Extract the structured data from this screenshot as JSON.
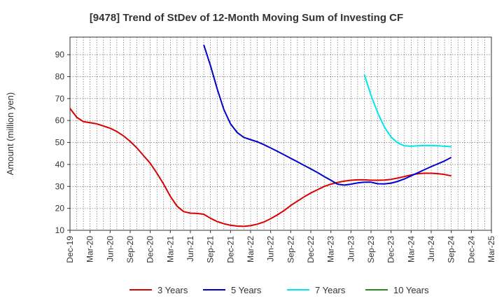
{
  "chart_data": {
    "type": "line",
    "title": "[9478]  Trend of StDev of 12-Month Moving Sum of Investing CF",
    "xlabel": "",
    "ylabel": "Amount (million yen)",
    "ylim": [
      10,
      98
    ],
    "yticks": [
      10,
      20,
      30,
      40,
      50,
      60,
      70,
      80,
      90
    ],
    "xticks": [
      "Dec-19",
      "Mar-20",
      "Jun-20",
      "Sep-20",
      "Dec-20",
      "Mar-21",
      "Jun-21",
      "Sep-21",
      "Dec-21",
      "Mar-22",
      "Jun-22",
      "Sep-22",
      "Dec-22",
      "Mar-23",
      "Jun-23",
      "Sep-23",
      "Dec-23",
      "Mar-24",
      "Jun-24",
      "Sep-24",
      "Dec-24",
      "Mar-25"
    ],
    "x_start": "Dec-19",
    "x_end": "Mar-25",
    "grid": true,
    "legend_position": "bottom",
    "series": [
      {
        "name": "3 Years",
        "color": "#dd0000",
        "points": [
          [
            "Dec-19",
            65.5
          ],
          [
            "Jan-20",
            61.5
          ],
          [
            "Feb-20",
            59.5
          ],
          [
            "Mar-20",
            59
          ],
          [
            "Apr-20",
            58.5
          ],
          [
            "May-20",
            57.5
          ],
          [
            "Jun-20",
            56.5
          ],
          [
            "Jul-20",
            55
          ],
          [
            "Aug-20",
            53
          ],
          [
            "Sep-20",
            50.5
          ],
          [
            "Oct-20",
            47.5
          ],
          [
            "Nov-20",
            44
          ],
          [
            "Dec-20",
            40.5
          ],
          [
            "Jan-21",
            36
          ],
          [
            "Feb-21",
            31
          ],
          [
            "Mar-21",
            25.5
          ],
          [
            "Apr-21",
            21
          ],
          [
            "May-21",
            18.5
          ],
          [
            "Jun-21",
            17.8
          ],
          [
            "Jul-21",
            17.7
          ],
          [
            "Aug-21",
            17.3
          ],
          [
            "Sep-21",
            15.5
          ],
          [
            "Oct-21",
            14
          ],
          [
            "Nov-21",
            13
          ],
          [
            "Dec-21",
            12.3
          ],
          [
            "Jan-22",
            11.9
          ],
          [
            "Feb-22",
            11.8
          ],
          [
            "Mar-22",
            12.1
          ],
          [
            "Apr-22",
            12.8
          ],
          [
            "May-22",
            13.8
          ],
          [
            "Jun-22",
            15.3
          ],
          [
            "Jul-22",
            17
          ],
          [
            "Aug-22",
            19
          ],
          [
            "Sep-22",
            21.3
          ],
          [
            "Oct-22",
            23.3
          ],
          [
            "Nov-22",
            25.2
          ],
          [
            "Dec-22",
            27
          ],
          [
            "Jan-23",
            28.5
          ],
          [
            "Feb-23",
            30
          ],
          [
            "Mar-23",
            31
          ],
          [
            "Apr-23",
            31.8
          ],
          [
            "May-23",
            32.4
          ],
          [
            "Jun-23",
            32.8
          ],
          [
            "Jul-23",
            33
          ],
          [
            "Aug-23",
            33
          ],
          [
            "Sep-23",
            32.8
          ],
          [
            "Oct-23",
            32.8
          ],
          [
            "Nov-23",
            32.9
          ],
          [
            "Dec-23",
            33.2
          ],
          [
            "Jan-24",
            33.8
          ],
          [
            "Feb-24",
            34.5
          ],
          [
            "Mar-24",
            35.2
          ],
          [
            "Apr-24",
            35.8
          ],
          [
            "May-24",
            36
          ],
          [
            "Jun-24",
            36
          ],
          [
            "Jul-24",
            35.8
          ],
          [
            "Aug-24",
            35.4
          ],
          [
            "Sep-24",
            34.8
          ]
        ]
      },
      {
        "name": "5 Years",
        "color": "#0000cc",
        "points": [
          [
            "Aug-21",
            94.5
          ],
          [
            "Sep-21",
            85
          ],
          [
            "Oct-21",
            74.5
          ],
          [
            "Nov-21",
            65
          ],
          [
            "Dec-21",
            58.5
          ],
          [
            "Jan-22",
            54.5
          ],
          [
            "Feb-22",
            52.3
          ],
          [
            "Mar-22",
            51.3
          ],
          [
            "Apr-22",
            50.3
          ],
          [
            "May-22",
            49
          ],
          [
            "Jun-22",
            47.5
          ],
          [
            "Jul-22",
            46
          ],
          [
            "Aug-22",
            44.4
          ],
          [
            "Sep-22",
            42.8
          ],
          [
            "Oct-22",
            41.2
          ],
          [
            "Nov-22",
            39.6
          ],
          [
            "Dec-22",
            38
          ],
          [
            "Jan-23",
            36.3
          ],
          [
            "Feb-23",
            34.5
          ],
          [
            "Mar-23",
            32.8
          ],
          [
            "Apr-23",
            31
          ],
          [
            "May-23",
            30.6
          ],
          [
            "Jun-23",
            31
          ],
          [
            "Jul-23",
            31.6
          ],
          [
            "Aug-23",
            31.9
          ],
          [
            "Sep-23",
            31.9
          ],
          [
            "Oct-23",
            31.2
          ],
          [
            "Nov-23",
            31.1
          ],
          [
            "Dec-23",
            31.5
          ],
          [
            "Jan-24",
            32.3
          ],
          [
            "Feb-24",
            33.4
          ],
          [
            "Mar-24",
            34.8
          ],
          [
            "Apr-24",
            36.2
          ],
          [
            "May-24",
            37.6
          ],
          [
            "Jun-24",
            39
          ],
          [
            "Jul-24",
            40.3
          ],
          [
            "Aug-24",
            41.6
          ],
          [
            "Sep-24",
            43.2
          ]
        ]
      },
      {
        "name": "7 Years",
        "color": "#00e5ee",
        "points": [
          [
            "Aug-23",
            81
          ],
          [
            "Sep-23",
            71.5
          ],
          [
            "Oct-23",
            63.5
          ],
          [
            "Nov-23",
            57
          ],
          [
            "Dec-23",
            52.5
          ],
          [
            "Jan-24",
            49.8
          ],
          [
            "Feb-24",
            48.5
          ],
          [
            "Mar-24",
            48.3
          ],
          [
            "Apr-24",
            48.5
          ],
          [
            "May-24",
            48.6
          ],
          [
            "Jun-24",
            48.6
          ],
          [
            "Jul-24",
            48.5
          ],
          [
            "Aug-24",
            48.3
          ],
          [
            "Sep-24",
            48.1
          ]
        ]
      },
      {
        "name": "10 Years",
        "color": "#228b22",
        "points": []
      }
    ]
  }
}
